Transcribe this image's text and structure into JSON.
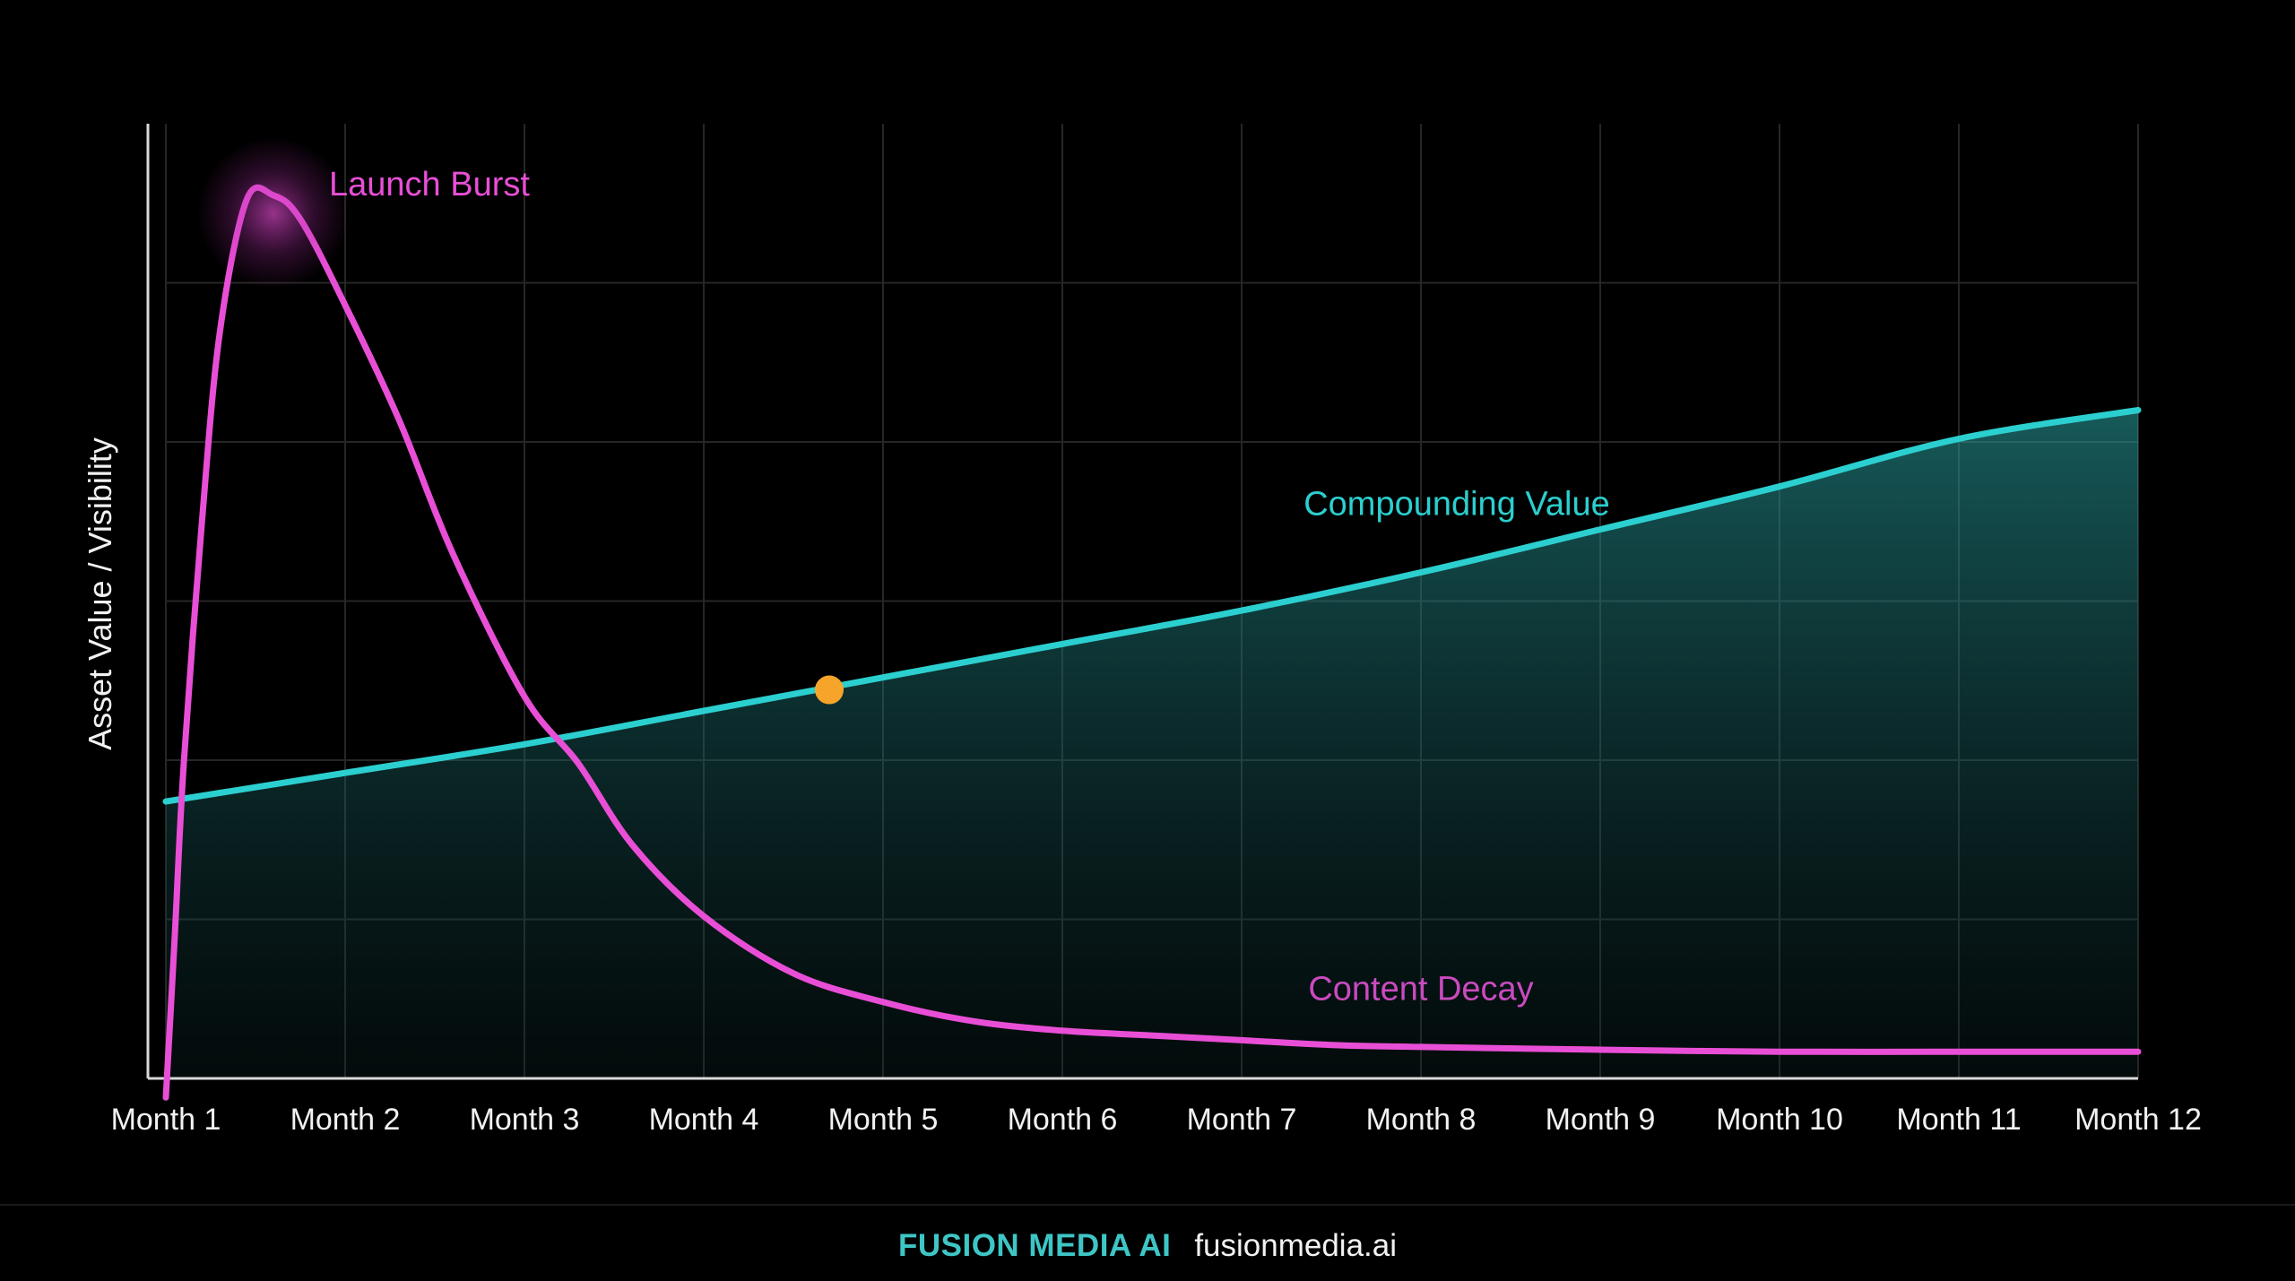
{
  "chart_data": {
    "type": "line",
    "title": "",
    "xlabel": "",
    "ylabel": "Asset Value / Visibility",
    "categories": [
      "Month 1",
      "Month 2",
      "Month 3",
      "Month 4",
      "Month 5",
      "Month 6",
      "Month 7",
      "Month 8",
      "Month 9",
      "Month 10",
      "Month 11",
      "Month 12"
    ],
    "y_tick_labels": false,
    "grid": true,
    "ylim": [
      0,
      100
    ],
    "series": [
      {
        "name": "Compounding Value",
        "color": "#2ccfcf",
        "fill": true,
        "x": [
          1,
          2,
          3,
          4,
          5,
          6,
          7,
          8,
          9,
          10,
          11,
          12
        ],
        "y": [
          29,
          32,
          35,
          38.5,
          42,
          45.5,
          49,
          53,
          57.5,
          62,
          67,
          70
        ]
      },
      {
        "name": "Content Decay",
        "color": "#e84fd6",
        "fill": false,
        "x": [
          1,
          1.05,
          1.1,
          1.2,
          1.3,
          1.45,
          1.6,
          1.75,
          2,
          2.3,
          2.6,
          3,
          3.3,
          3.6,
          4,
          4.5,
          5,
          5.5,
          6,
          6.5,
          7,
          7.5,
          8,
          9,
          10,
          11,
          12
        ],
        "y": [
          -2,
          15,
          33,
          58,
          78,
          92,
          92.5,
          90,
          81,
          69,
          55,
          40,
          33,
          24.5,
          17,
          11,
          8,
          6,
          5,
          4.5,
          4,
          3.5,
          3.3,
          3,
          2.8,
          2.8,
          2.8
        ]
      }
    ],
    "annotations": [
      {
        "text": "Launch Burst",
        "series": "Content Decay",
        "x": 1.6,
        "y": 92.5,
        "glow": true
      },
      {
        "text": "Compounding Value",
        "series": "Compounding Value"
      },
      {
        "text": "Content Decay",
        "series": "Content Decay"
      }
    ],
    "marker": {
      "x": 4.7,
      "y": 40.7,
      "color": "#f6a52a"
    }
  },
  "footer": {
    "brand": "FUSION MEDIA AI",
    "site": "fusionmedia.ai"
  }
}
